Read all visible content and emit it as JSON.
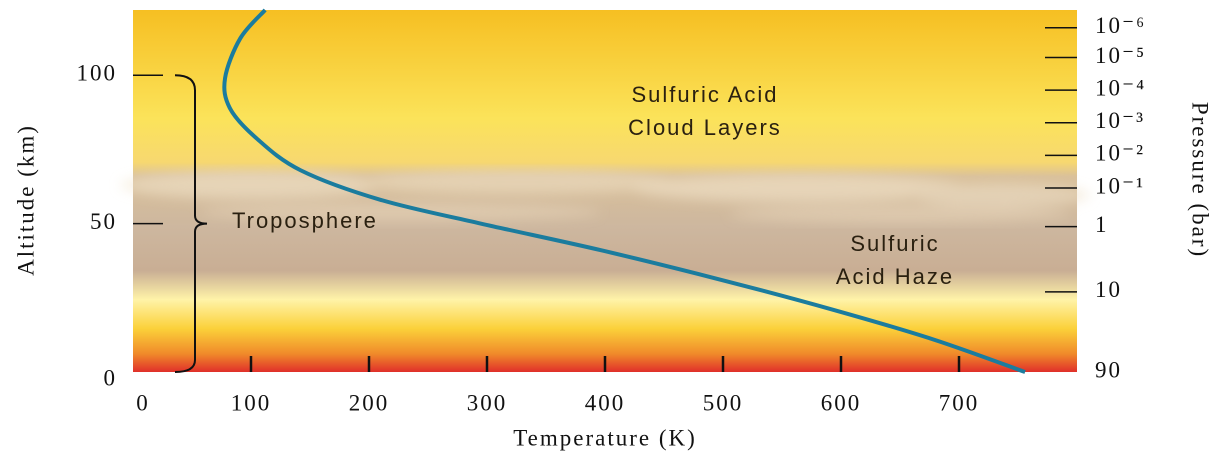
{
  "chart_data": {
    "type": "line",
    "xlabel": "Temperature (K)",
    "ylabel": "Altitude (km)",
    "y2label": "Pressure (bar)",
    "xlim": [
      0,
      800
    ],
    "xticks": [
      0,
      100,
      200,
      300,
      400,
      500,
      600,
      700
    ],
    "ylim": [
      0,
      122
    ],
    "yticks": [
      0,
      50,
      100
    ],
    "y2ticks": [
      {
        "value": 1e-06,
        "label": "10⁻⁶"
      },
      {
        "value": 1e-05,
        "label": "10⁻⁵"
      },
      {
        "value": 0.0001,
        "label": "10⁻⁴"
      },
      {
        "value": 0.001,
        "label": "10⁻³"
      },
      {
        "value": 0.01,
        "label": "10⁻²"
      },
      {
        "value": 0.1,
        "label": "10⁻¹"
      },
      1,
      10,
      90
    ],
    "y2ticks_at_altitude": [
      116,
      106,
      95,
      84,
      73,
      62,
      49,
      27,
      0
    ],
    "series": [
      {
        "color": "#1b7c9e",
        "x": [
          112,
          91,
          78,
          82,
          104,
          142,
          210,
          295,
          397,
          499,
          593,
          678,
          756
        ],
        "values": [
          122,
          112.5,
          99,
          89,
          79,
          68,
          58,
          50,
          41,
          31,
          21,
          11,
          0
        ]
      }
    ],
    "annotations": [
      {
        "text": [
          "Sulfuric Acid",
          "Cloud Layers"
        ]
      },
      {
        "text": [
          "Troposphere"
        ]
      },
      {
        "text": [
          "Sulfuric",
          "Acid Haze"
        ]
      }
    ]
  }
}
